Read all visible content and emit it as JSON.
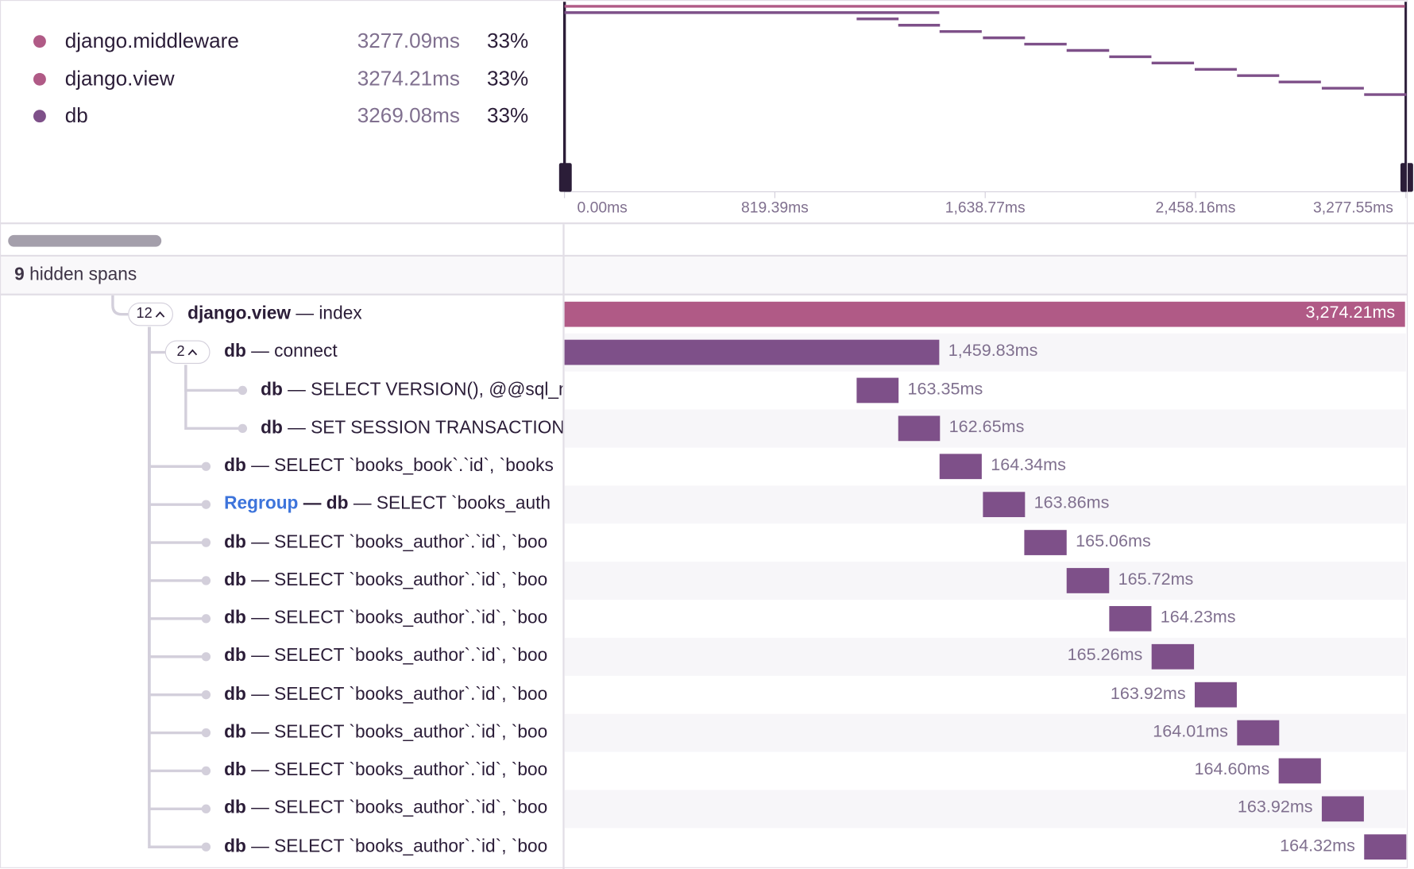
{
  "legend": [
    {
      "name": "django.middleware",
      "duration": "3277.09ms",
      "percent": "33%",
      "color": "#b05a86"
    },
    {
      "name": "django.view",
      "duration": "3274.21ms",
      "percent": "33%",
      "color": "#b05a86"
    },
    {
      "name": "db",
      "duration": "3269.08ms",
      "percent": "33%",
      "color": "#7e5089"
    }
  ],
  "axis": {
    "xlim": [
      0,
      3277.55
    ],
    "ticks": [
      {
        "value": 0,
        "label": "0.00ms"
      },
      {
        "value": 819.39,
        "label": "819.39ms"
      },
      {
        "value": 1638.77,
        "label": "1,638.77ms"
      },
      {
        "value": 2458.16,
        "label": "2,458.16ms"
      },
      {
        "value": 3277.55,
        "label": "3,277.55ms"
      }
    ]
  },
  "hidden": {
    "count": "9",
    "label": "hidden spans"
  },
  "waterfall": {
    "spans": [
      {
        "depth": 0,
        "count": "12",
        "op": "django.view",
        "description": "— index",
        "start_ms": 0,
        "duration": {
          "value": 3274.21,
          "label": "3,274.21ms"
        }
      },
      {
        "depth": 1,
        "count": "2",
        "op": "db",
        "description": "— connect",
        "start_ms": 0,
        "duration": {
          "value": 1459.83,
          "label": "1,459.83ms"
        }
      },
      {
        "depth": 2,
        "op": "db",
        "description": "— SELECT VERSION(), @@sql_m",
        "start_ms": 1138,
        "duration": {
          "value": 163.35,
          "label": "163.35ms"
        }
      },
      {
        "depth": 2,
        "op": "db",
        "description": "— SET SESSION TRANSACTION",
        "start_ms": 1300,
        "duration": {
          "value": 162.65,
          "label": "162.65ms"
        }
      },
      {
        "depth": 1,
        "op": "db",
        "description": "— SELECT `books_book`.`id`, `books",
        "start_ms": 1461,
        "duration": {
          "value": 164.34,
          "label": "164.34ms"
        }
      },
      {
        "depth": 1,
        "prefix": "Regroup",
        "prefix_separator": "—",
        "op": "db",
        "description": "— SELECT `books_auth",
        "start_ms": 1630,
        "duration": {
          "value": 163.86,
          "label": "163.86ms"
        }
      },
      {
        "depth": 1,
        "op": "db",
        "description": "— SELECT `books_author`.`id`, `boo",
        "start_ms": 1791,
        "duration": {
          "value": 165.06,
          "label": "165.06ms"
        }
      },
      {
        "depth": 1,
        "op": "db",
        "description": "— SELECT `books_author`.`id`, `boo",
        "start_ms": 1956,
        "duration": {
          "value": 165.72,
          "label": "165.72ms"
        }
      },
      {
        "depth": 1,
        "op": "db",
        "description": "— SELECT `books_author`.`id`, `boo",
        "start_ms": 2122,
        "duration": {
          "value": 164.23,
          "label": "164.23ms"
        }
      },
      {
        "depth": 1,
        "op": "db",
        "description": "— SELECT `books_author`.`id`, `boo",
        "start_ms": 2287,
        "duration": {
          "value": 165.26,
          "label": "165.26ms"
        }
      },
      {
        "depth": 1,
        "op": "db",
        "description": "— SELECT `books_author`.`id`, `boo",
        "start_ms": 2455,
        "duration": {
          "value": 163.92,
          "label": "163.92ms"
        }
      },
      {
        "depth": 1,
        "op": "db",
        "description": "— SELECT `books_author`.`id`, `boo",
        "start_ms": 2620,
        "duration": {
          "value": 164.01,
          "label": "164.01ms"
        }
      },
      {
        "depth": 1,
        "op": "db",
        "description": "— SELECT `books_author`.`id`, `boo",
        "start_ms": 2782,
        "duration": {
          "value": 164.6,
          "label": "164.60ms"
        }
      },
      {
        "depth": 1,
        "op": "db",
        "description": "— SELECT `books_author`.`id`, `boo",
        "start_ms": 2950,
        "duration": {
          "value": 163.92,
          "label": "163.92ms"
        }
      },
      {
        "depth": 1,
        "op": "db",
        "description": "— SELECT `books_author`.`id`, `boo",
        "start_ms": 3115,
        "duration": {
          "value": 164.32,
          "label": "164.32ms"
        }
      }
    ]
  }
}
